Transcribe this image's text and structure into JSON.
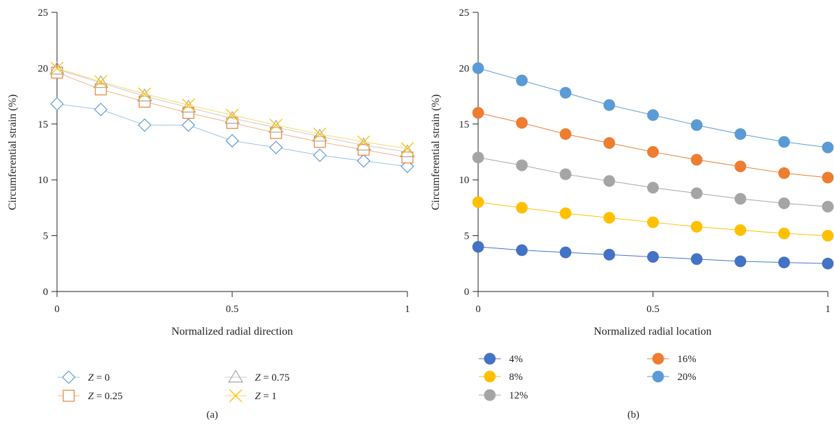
{
  "chart_data": [
    {
      "type": "line",
      "panel_label": "(a)",
      "xlabel": "Normalized radial direction",
      "ylabel": "Circumferential strain (%)",
      "xlim": [
        0,
        1
      ],
      "ylim": [
        0,
        25
      ],
      "xticks": [
        0,
        0.5,
        1
      ],
      "xtick_labels": [
        "0",
        "0.5",
        "1"
      ],
      "yticks": [
        0,
        5,
        10,
        15,
        20,
        25
      ],
      "ytick_labels": [
        "0",
        "5",
        "10",
        "15",
        "20",
        "25"
      ],
      "grid": false,
      "legend_position": "bottom",
      "x": [
        0,
        0.125,
        0.25,
        0.375,
        0.5,
        0.625,
        0.75,
        0.875,
        1
      ],
      "series": [
        {
          "name": "Z = 0",
          "var": "Z",
          "value_text": " = 0",
          "marker": "diamond",
          "color": "#5b9bd5",
          "line_color": "#9dc3e6",
          "values": [
            16.8,
            16.3,
            14.9,
            14.9,
            13.5,
            12.9,
            12.2,
            11.7,
            11.2
          ]
        },
        {
          "name": "Z = 0.25",
          "var": "Z",
          "value_text": " = 0.25",
          "marker": "square",
          "color": "#ed7d31",
          "line_color": "#f4b183",
          "values": [
            19.6,
            18.1,
            17.0,
            16.0,
            15.1,
            14.2,
            13.4,
            12.7,
            12.0
          ]
        },
        {
          "name": "Z = 0.75",
          "var": "Z",
          "value_text": " = 0.75",
          "marker": "triangle",
          "color": "#a5a5a5",
          "line_color": "#c9c9c9",
          "values": [
            19.9,
            18.7,
            17.5,
            16.5,
            15.5,
            14.7,
            13.9,
            13.1,
            12.5
          ]
        },
        {
          "name": "Z = 1",
          "var": "Z",
          "value_text": " = 1",
          "marker": "x",
          "color": "#ffc000",
          "line_color": "#ffd966",
          "values": [
            20.0,
            18.8,
            17.7,
            16.7,
            15.8,
            14.9,
            14.1,
            13.4,
            12.8
          ]
        }
      ]
    },
    {
      "type": "line",
      "panel_label": "(b)",
      "xlabel": "Normalized radial location",
      "ylabel": "Circumferential strain (%)",
      "xlim": [
        0,
        1
      ],
      "ylim": [
        0,
        25
      ],
      "xticks": [
        0,
        0.5,
        1
      ],
      "xtick_labels": [
        "0",
        "0.5",
        "1"
      ],
      "yticks": [
        0,
        5,
        10,
        15,
        20,
        25
      ],
      "ytick_labels": [
        "0",
        "5",
        "10",
        "15",
        "20",
        "25"
      ],
      "grid": false,
      "legend_position": "bottom",
      "x": [
        0,
        0.125,
        0.25,
        0.375,
        0.5,
        0.625,
        0.75,
        0.875,
        1
      ],
      "series": [
        {
          "name": "4%",
          "marker": "circle",
          "color": "#4472c4",
          "line_color": "#4472c4",
          "values": [
            4.0,
            3.7,
            3.5,
            3.3,
            3.1,
            2.9,
            2.7,
            2.6,
            2.5
          ]
        },
        {
          "name": "8%",
          "marker": "circle",
          "color": "#ffc000",
          "line_color": "#ffc000",
          "values": [
            8.0,
            7.5,
            7.0,
            6.6,
            6.2,
            5.8,
            5.5,
            5.2,
            5.0
          ]
        },
        {
          "name": "12%",
          "marker": "circle",
          "color": "#a5a5a5",
          "line_color": "#a5a5a5",
          "values": [
            12.0,
            11.3,
            10.5,
            9.9,
            9.3,
            8.8,
            8.3,
            7.9,
            7.6
          ]
        },
        {
          "name": "16%",
          "marker": "circle",
          "color": "#ed7d31",
          "line_color": "#ed7d31",
          "values": [
            16.0,
            15.1,
            14.1,
            13.3,
            12.5,
            11.8,
            11.2,
            10.6,
            10.2
          ]
        },
        {
          "name": "20%",
          "marker": "circle",
          "color": "#5b9bd5",
          "line_color": "#5b9bd5",
          "values": [
            20.0,
            18.9,
            17.8,
            16.7,
            15.8,
            14.9,
            14.1,
            13.4,
            12.9
          ]
        }
      ]
    }
  ]
}
